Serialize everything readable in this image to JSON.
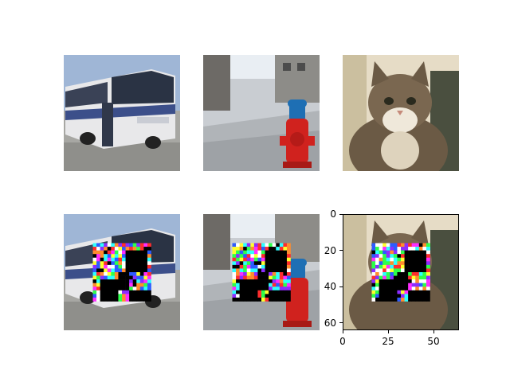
{
  "figure": {
    "rows": [
      [
        {
          "name": "bus-original",
          "subject": "bus",
          "masked": false
        },
        {
          "name": "hydrant-original",
          "subject": "hydrant",
          "masked": false
        },
        {
          "name": "cat-original",
          "subject": "cat",
          "masked": false
        }
      ],
      [
        {
          "name": "bus-masked",
          "subject": "bus",
          "masked": true
        },
        {
          "name": "hydrant-masked",
          "subject": "hydrant",
          "masked": true
        },
        {
          "name": "cat-masked",
          "subject": "cat",
          "masked": true
        }
      ]
    ],
    "last_axes": {
      "xlim": [
        0,
        64
      ],
      "ylim": [
        64,
        0
      ],
      "x_ticks": [
        {
          "value": 0,
          "label": "0"
        },
        {
          "value": 25,
          "label": "25"
        },
        {
          "value": 50,
          "label": "50"
        }
      ],
      "y_ticks": [
        {
          "value": 0,
          "label": "0"
        },
        {
          "value": 20,
          "label": "20"
        },
        {
          "value": 40,
          "label": "40"
        },
        {
          "value": 60,
          "label": "60"
        }
      ]
    },
    "mask_region": {
      "x0": 16,
      "x1": 48,
      "y0": 16,
      "y1": 48
    },
    "colors": {
      "sky": "#9fb6d6",
      "road": "#a7a7a3",
      "bus_body": "#e8e8ea",
      "bus_window": "#2a3344",
      "bus_stripe": "#3c4f8a",
      "street_bg": "#c9cdd2",
      "building": "#6d6a66",
      "hydrant_red": "#d0221e",
      "hydrant_blue": "#1e6fb4",
      "cat_bg": "#e6dcc6",
      "cat_fur": "#6b5a45",
      "cat_white": "#efe8da",
      "mask_black": "#000000"
    }
  }
}
